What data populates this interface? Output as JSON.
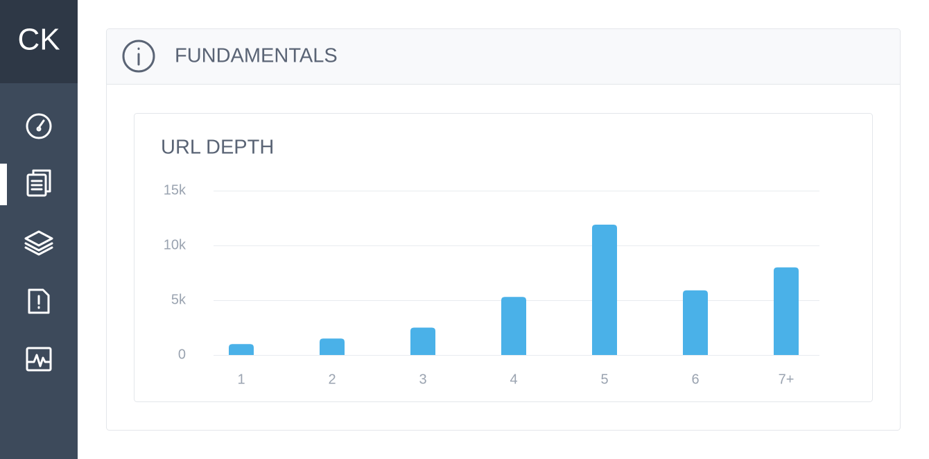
{
  "sidebar": {
    "logo": "CK"
  },
  "panel": {
    "title": "FUNDAMENTALS"
  },
  "chart_data": {
    "type": "bar",
    "title": "URL DEPTH",
    "categories": [
      "1",
      "2",
      "3",
      "4",
      "5",
      "6",
      "7+"
    ],
    "values": [
      1000,
      1500,
      2500,
      5300,
      11900,
      5900,
      8000
    ],
    "color": "#4ab1e8",
    "ylim": [
      0,
      15000
    ],
    "yticks": [
      0,
      {
        "value": 5000,
        "label": "5k"
      },
      {
        "value": 10000,
        "label": "10k"
      },
      {
        "value": 15000,
        "label": "15k"
      }
    ],
    "grid": true
  }
}
